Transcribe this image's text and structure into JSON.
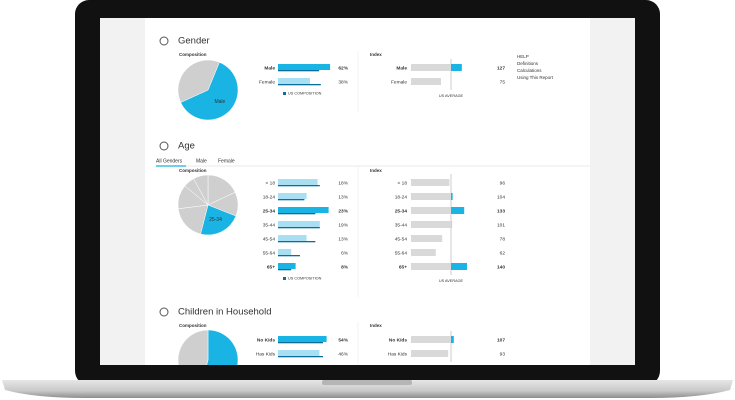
{
  "help": {
    "title": "HELP",
    "links": [
      "Definitions",
      "Calculations",
      "Using This Report"
    ]
  },
  "sections": [
    {
      "title": "Gender",
      "composition_label": "Composition",
      "index_label": "Index",
      "pie_label": "Male",
      "legend": "US COMPOSITION",
      "average_label": "US AVERAGE",
      "rows": [
        {
          "label": "Male",
          "percent": 62,
          "percent_label": "62%",
          "us_percent": 49,
          "index": 127,
          "bold": true
        },
        {
          "label": "Female",
          "percent": 38,
          "percent_label": "38%",
          "us_percent": 51,
          "index": 75
        }
      ]
    },
    {
      "title": "Age",
      "tabs": [
        "All Genders",
        "Male",
        "Female"
      ],
      "composition_label": "Composition",
      "index_label": "Index",
      "pie_label": "25-34",
      "legend": "US COMPOSITION",
      "average_label": "US AVERAGE",
      "rows": [
        {
          "label": "< 18",
          "percent": 18,
          "percent_label": "18%",
          "us_percent": 19,
          "index": 96
        },
        {
          "label": "18-24",
          "percent": 13,
          "percent_label": "13%",
          "us_percent": 12,
          "index": 104
        },
        {
          "label": "25-34",
          "percent": 23,
          "percent_label": "23%",
          "us_percent": 17,
          "index": 133,
          "bold": true
        },
        {
          "label": "35-44",
          "percent": 19,
          "percent_label": "19%",
          "us_percent": 19,
          "index": 101
        },
        {
          "label": "45-54",
          "percent": 13,
          "percent_label": "13%",
          "us_percent": 17,
          "index": 78
        },
        {
          "label": "55-64",
          "percent": 6,
          "percent_label": "6%",
          "us_percent": 10,
          "index": 62
        },
        {
          "label": "65+",
          "percent": 8,
          "percent_label": "8%",
          "us_percent": 6,
          "index": 140,
          "bold": true
        }
      ]
    },
    {
      "title": "Children in Household",
      "composition_label": "Composition",
      "index_label": "Index",
      "rows": [
        {
          "label": "No Kids",
          "percent": 54,
          "percent_label": "54%",
          "us_percent": 50,
          "index": 107,
          "bold": true
        },
        {
          "label": "Has Kids",
          "percent": 46,
          "percent_label": "46%",
          "us_percent": 50,
          "index": 93
        }
      ]
    }
  ]
}
